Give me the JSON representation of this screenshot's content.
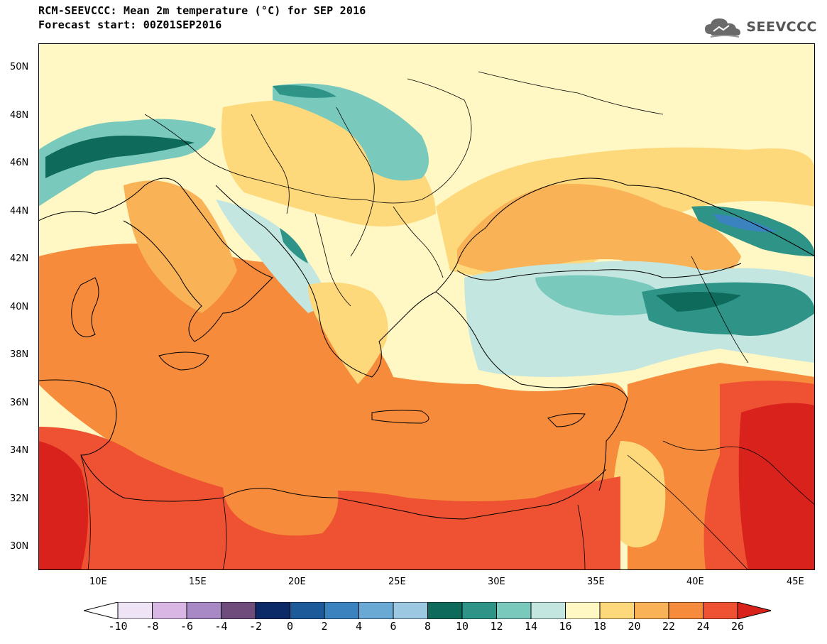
{
  "title": {
    "line1": "RCM-SEEVCCC: Mean 2m temperature (°C) for SEP 2016",
    "line2": "Forecast start: 00Z01SEP2016"
  },
  "logo": {
    "text": "SEEVCCC",
    "icon": "cloud-logo-icon"
  },
  "map": {
    "lat_labels": [
      "50N",
      "48N",
      "46N",
      "44N",
      "42N",
      "40N",
      "38N",
      "36N",
      "34N",
      "32N",
      "30N"
    ],
    "lon_labels": [
      "10E",
      "15E",
      "20E",
      "25E",
      "30E",
      "35E",
      "40E",
      "45E"
    ],
    "lat_range": [
      29,
      51
    ],
    "lon_range": [
      7,
      46
    ]
  },
  "colorbar": {
    "labels": [
      "-10",
      "-8",
      "-6",
      "-4",
      "-2",
      "0",
      "2",
      "4",
      "6",
      "8",
      "10",
      "12",
      "14",
      "16",
      "18",
      "20",
      "22",
      "24",
      "26"
    ],
    "colors": [
      "#ffffff",
      "#efe4f6",
      "#d8b7e4",
      "#a889c6",
      "#6e4d7c",
      "#0d2a68",
      "#1d5a9a",
      "#3a83bf",
      "#6aa9d3",
      "#9cc8e2",
      "#0e6a5a",
      "#2f9488",
      "#7ac9bd",
      "#c4e6e0",
      "#fff7c4",
      "#fdd97b",
      "#f9b256",
      "#f68b3b",
      "#ef5233",
      "#d9221c"
    ]
  }
}
